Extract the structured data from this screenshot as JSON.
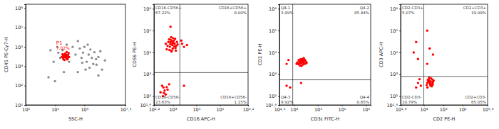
{
  "chart_data": [
    {
      "type": "scatter",
      "log": true,
      "x_label": "SSC-H",
      "y_label": "CD45 PE-Cy7-H",
      "xlim": [
        10000,
        25118864
      ],
      "ylim": [
        10,
        1600000
      ],
      "xticks": [
        {
          "value": 10000,
          "label": "10⁴"
        },
        {
          "value": 100000,
          "label": "10⁵"
        },
        {
          "value": 1000000,
          "label": "10⁶"
        },
        {
          "value": 25118864,
          "label": "10⁷.⁴"
        }
      ],
      "yticks": [
        {
          "value": 10,
          "label": "10¹"
        },
        {
          "value": 100,
          "label": "10²"
        },
        {
          "value": 1000,
          "label": "10³"
        },
        {
          "value": 10000,
          "label": "10⁴"
        },
        {
          "value": 100000,
          "label": "10⁵"
        },
        {
          "value": 1000000,
          "label": "10⁶"
        }
      ],
      "series": [
        {
          "color": "#8c8c8c",
          "x": [
            120000.0,
            150000.0,
            180000.0,
            250000.0,
            300000.0,
            130000.0,
            400000.0,
            500000.0,
            600000.0,
            700000.0,
            800000.0,
            900000.0,
            1000000.0,
            1200000.0,
            1400000.0,
            1600000.0,
            1800000.0,
            2000000.0,
            2200000.0,
            2600000.0,
            3000000.0,
            1100000.0,
            850000.0,
            1500000.0,
            2500000.0,
            3500000.0,
            5000000.0,
            600000.0,
            4000000.0,
            90000.0,
            70000.0,
            200000.0,
            1300000.0,
            3000000.0,
            60000.0,
            100000.0
          ],
          "values": [
            10000.0,
            2700.0,
            6700.0,
            13000.0,
            1700.0,
            5000.0,
            10000.0,
            4000.0,
            20000.0,
            8300.0,
            2700.0,
            5000.0,
            10000.0,
            1700.0,
            4000.0,
            7300.0,
            2700.0,
            1300.0,
            5300.0,
            1200.0,
            3000.0,
            670.0,
            1500.0,
            830.0,
            2300.0,
            6000.0,
            2000.0,
            500.0,
            670.0,
            1700.0,
            6700.0,
            500.0,
            13000.0,
            330.0,
            270.0,
            170.0
          ]
        },
        {
          "color": "#ff0000",
          "x": [
            170000.0,
            190000.0,
            200000.0,
            220000.0,
            240000.0,
            260000.0,
            280000.0,
            300000.0,
            210000.0,
            250000.0,
            230000.0,
            270000.0,
            180000.0,
            290000.0,
            200000.0,
            240000.0,
            260000.0,
            220000.0,
            190000.0,
            280000.0
          ],
          "values": [
            3000.0,
            2400.0,
            3600.0,
            4500.0,
            2700.0,
            3300.0,
            3900.0,
            3000.0,
            2100.0,
            5400.0,
            3300.0,
            2400.0,
            4200.0,
            4800.0,
            2850.0,
            3900.0,
            2250.0,
            3000.0,
            3600.0,
            3000.0
          ]
        }
      ],
      "gate": {
        "label": "P1",
        "value": 7.02,
        "value_label": "7.02%"
      }
    },
    {
      "type": "scatter",
      "log": true,
      "x_label": "CD16 APC-H",
      "y_label": "CD56 PE-H",
      "xlim": [
        158.5,
        1584893
      ],
      "ylim": [
        39.81,
        1600000
      ],
      "xticks": [
        {
          "value": 158.5,
          "label": "10².²"
        },
        {
          "value": 1000,
          "label": "10³"
        },
        {
          "value": 10000,
          "label": "10⁴"
        },
        {
          "value": 100000,
          "label": "10⁵"
        },
        {
          "value": 1584893,
          "label": "10⁶.²"
        }
      ],
      "yticks": [
        {
          "value": 39.81,
          "label": "10¹.⁶"
        },
        {
          "value": 100,
          "label": "10²"
        },
        {
          "value": 1000,
          "label": "10³"
        },
        {
          "value": 10000,
          "label": "10⁴"
        },
        {
          "value": 100000,
          "label": "10⁵"
        },
        {
          "value": 1000000,
          "label": "10⁶"
        }
      ],
      "series": [
        {
          "color": "#ff0000",
          "x": [
            600,
            800,
            1000,
            1200,
            700,
            900,
            1100,
            1400,
            500,
            750,
            950,
            1300,
            850,
            650,
            1500,
            1050,
            1150,
            780,
            920,
            1250,
            550,
            1600,
            880,
            1020,
            720,
            980,
            1350,
            820,
            800,
            2500,
            3000,
            2300,
            4000,
            300,
            400,
            500,
            350,
            600,
            450,
            700,
            380,
            550,
            420,
            3000
          ],
          "values": [
            20000.0,
            30000.0,
            15000.0,
            25000.0,
            40000.0,
            12000.0,
            35000.0,
            20000.0,
            25000.0,
            18000.0,
            22000.0,
            16000.0,
            50000.0,
            30000.0,
            30000.0,
            28000.0,
            19000.0,
            24000.0,
            32000.0,
            42000.0,
            14000.0,
            23000.0,
            11000.0,
            45000.0,
            13000.0,
            26000.0,
            12000.0,
            38000.0,
            150000.0,
            25000.0,
            18000.0,
            35000.0,
            22000.0,
            150,
            250,
            120,
            300,
            200,
            180,
            350,
            100,
            260,
            140,
            300
          ]
        }
      ],
      "quadrants": {
        "x": 2000,
        "y": 1200,
        "labels": [
          "CD16-CD56+",
          "CD16+CD56+",
          "CD16-CD56-",
          "CD16+CD56-"
        ],
        "values": [
          67.22,
          8.0,
          23.63,
          1.15
        ],
        "value_labels": [
          "67.22%",
          "8.00%",
          "23.63%",
          "1.15%"
        ]
      }
    },
    {
      "type": "scatter",
      "log": true,
      "x_label": "CD3ε FITC-H",
      "y_label": "CD2 PE-H",
      "xlim": [
        251.2,
        1600000
      ],
      "ylim": [
        39.81,
        1600000
      ],
      "xticks": [
        {
          "value": 251.2,
          "label": "10².⁴"
        },
        {
          "value": 1000,
          "label": "10³"
        },
        {
          "value": 10000,
          "label": "10⁴"
        },
        {
          "value": 100000,
          "label": "10⁵"
        },
        {
          "value": 1000000,
          "label": "10⁶"
        }
      ],
      "yticks": [
        {
          "value": 39.81,
          "label": "10¹.⁶"
        },
        {
          "value": 100,
          "label": "10²"
        },
        {
          "value": 1000,
          "label": "10³"
        },
        {
          "value": 10000,
          "label": "10⁴"
        },
        {
          "value": 100000,
          "label": "10⁵"
        },
        {
          "value": 1000000,
          "label": "10⁶"
        }
      ],
      "series": [
        {
          "color": "#ff0000",
          "x": [
            1500,
            2000,
            2500,
            1800,
            2200,
            3000,
            1600,
            2800,
            1400,
            2400,
            2000,
            2600,
            1700,
            3200,
            2100,
            1900,
            2300,
            2700,
            1550,
            2900,
            2150,
            1850,
            2450,
            3400,
            1300,
            500,
            600,
            500,
            700,
            2000
          ],
          "values": [
            3000,
            4000,
            3500,
            2500,
            5000,
            3000,
            4500,
            4200,
            3500,
            2800,
            3200,
            5500,
            3800,
            3800,
            2400,
            4800,
            3600,
            3100,
            2900,
            4600,
            4100,
            3300,
            4400,
            3400,
            3000,
            3000,
            4500,
            300,
            250,
            400
          ]
        }
      ],
      "quadrants": {
        "x": 900,
        "y": 560,
        "labels": [
          "Q4-1",
          "Q4-2",
          "Q4-3",
          "Q4-4"
        ],
        "values": [
          3.99,
          85.44,
          9.92,
          0.65
        ],
        "value_labels": [
          "3.99%",
          "85.44%",
          "9.92%",
          "0.65%"
        ]
      }
    },
    {
      "type": "scatter",
      "log": true,
      "x_label": "CD2 PE-H",
      "y_label": "CD3 APC-H",
      "xlim": [
        63.1,
        1995262
      ],
      "ylim": [
        39.81,
        1600000
      ],
      "xticks": [
        {
          "value": 63.1,
          "label": "10¹.⁸"
        },
        {
          "value": 1000,
          "label": "10³"
        },
        {
          "value": 10000,
          "label": "10⁴"
        },
        {
          "value": 100000,
          "label": "10⁵"
        },
        {
          "value": 1995262,
          "label": "10⁶.³"
        }
      ],
      "yticks": [
        {
          "value": 39.81,
          "label": "10¹.⁶"
        },
        {
          "value": 100,
          "label": "10²"
        },
        {
          "value": 1000,
          "label": "10³"
        },
        {
          "value": 10000,
          "label": "10⁴"
        },
        {
          "value": 100000,
          "label": "10⁵"
        },
        {
          "value": 1000000,
          "label": "10⁶"
        }
      ],
      "series": [
        {
          "color": "#ff0000",
          "x": [
            1500,
            2000,
            2500,
            1800,
            2200,
            3000,
            1600,
            2800,
            1400,
            2400,
            2000,
            2600,
            1700,
            3200,
            2100,
            1900,
            2300,
            2700,
            1550,
            2900,
            300,
            400,
            500,
            1500,
            2000,
            3000,
            1500,
            500,
            700,
            600,
            400
          ],
          "values": [
            400,
            500,
            350,
            600,
            300,
            450,
            550,
            380,
            320,
            650,
            420,
            280,
            480,
            520,
            360,
            700,
            460,
            580,
            250,
            340,
            10000.0,
            30000.0,
            5000.0,
            3000,
            15000.0,
            8000,
            100000.0,
            400,
            300,
            600,
            250
          ]
        }
      ],
      "quadrants": {
        "x": 1000,
        "y": 800,
        "labels": [
          "CD2-CD3+",
          "CD2+CD3+",
          "CD2-CD3-",
          "CD2+CD3-"
        ],
        "values": [
          5.07,
          19.09,
          10.79,
          65.05
        ],
        "value_labels": [
          "5.07%",
          "19.09%",
          "10.79%",
          "65.05%"
        ]
      }
    }
  ]
}
